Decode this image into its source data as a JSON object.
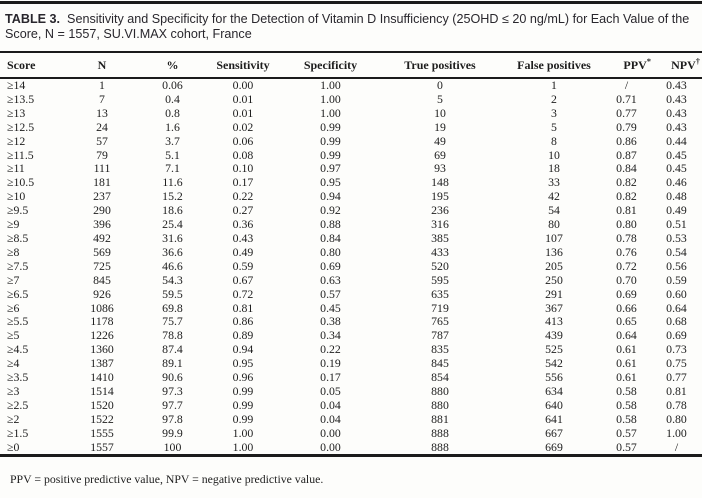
{
  "title": {
    "label": "TABLE 3.",
    "text": "Sensitivity and Specificity for the Detection of Vitamin D Insufficiency (25OHD ≤ 20 ng/mL) for Each Value of the Score, N = 1557, SU.VI.MAX cohort, France"
  },
  "table": {
    "columns": [
      {
        "label": "Score",
        "sup": ""
      },
      {
        "label": "N",
        "sup": ""
      },
      {
        "label": "%",
        "sup": ""
      },
      {
        "label": "Sensitivity",
        "sup": ""
      },
      {
        "label": "Specificity",
        "sup": ""
      },
      {
        "label": "True positives",
        "sup": ""
      },
      {
        "label": "False positives",
        "sup": ""
      },
      {
        "label": "PPV",
        "sup": "*"
      },
      {
        "label": "NPV",
        "sup": "†"
      }
    ],
    "rows": [
      [
        "≥14",
        "1",
        "0.06",
        "0.00",
        "1.00",
        "0",
        "1",
        "/",
        "0.43"
      ],
      [
        "≥13.5",
        "7",
        "0.4",
        "0.01",
        "1.00",
        "5",
        "2",
        "0.71",
        "0.43"
      ],
      [
        "≥13",
        "13",
        "0.8",
        "0.01",
        "1.00",
        "10",
        "3",
        "0.77",
        "0.43"
      ],
      [
        "≥12.5",
        "24",
        "1.6",
        "0.02",
        "0.99",
        "19",
        "5",
        "0.79",
        "0.43"
      ],
      [
        "≥12",
        "57",
        "3.7",
        "0.06",
        "0.99",
        "49",
        "8",
        "0.86",
        "0.44"
      ],
      [
        "≥11.5",
        "79",
        "5.1",
        "0.08",
        "0.99",
        "69",
        "10",
        "0.87",
        "0.45"
      ],
      [
        "≥11",
        "111",
        "7.1",
        "0.10",
        "0.97",
        "93",
        "18",
        "0.84",
        "0.45"
      ],
      [
        "≥10.5",
        "181",
        "11.6",
        "0.17",
        "0.95",
        "148",
        "33",
        "0.82",
        "0.46"
      ],
      [
        "≥10",
        "237",
        "15.2",
        "0.22",
        "0.94",
        "195",
        "42",
        "0.82",
        "0.48"
      ],
      [
        "≥9.5",
        "290",
        "18.6",
        "0.27",
        "0.92",
        "236",
        "54",
        "0.81",
        "0.49"
      ],
      [
        "≥9",
        "396",
        "25.4",
        "0.36",
        "0.88",
        "316",
        "80",
        "0.80",
        "0.51"
      ],
      [
        "≥8.5",
        "492",
        "31.6",
        "0.43",
        "0.84",
        "385",
        "107",
        "0.78",
        "0.53"
      ],
      [
        "≥8",
        "569",
        "36.6",
        "0.49",
        "0.80",
        "433",
        "136",
        "0.76",
        "0.54"
      ],
      [
        "≥7.5",
        "725",
        "46.6",
        "0.59",
        "0.69",
        "520",
        "205",
        "0.72",
        "0.56"
      ],
      [
        "≥7",
        "845",
        "54.3",
        "0.67",
        "0.63",
        "595",
        "250",
        "0.70",
        "0.59"
      ],
      [
        "≥6.5",
        "926",
        "59.5",
        "0.72",
        "0.57",
        "635",
        "291",
        "0.69",
        "0.60"
      ],
      [
        "≥6",
        "1086",
        "69.8",
        "0.81",
        "0.45",
        "719",
        "367",
        "0.66",
        "0.64"
      ],
      [
        "≥5.5",
        "1178",
        "75.7",
        "0.86",
        "0.38",
        "765",
        "413",
        "0.65",
        "0.68"
      ],
      [
        "≥5",
        "1226",
        "78.8",
        "0.89",
        "0.34",
        "787",
        "439",
        "0.64",
        "0.69"
      ],
      [
        "≥4.5",
        "1360",
        "87.4",
        "0.94",
        "0.22",
        "835",
        "525",
        "0.61",
        "0.73"
      ],
      [
        "≥4",
        "1387",
        "89.1",
        "0.95",
        "0.19",
        "845",
        "542",
        "0.61",
        "0.75"
      ],
      [
        "≥3.5",
        "1410",
        "90.6",
        "0.96",
        "0.17",
        "854",
        "556",
        "0.61",
        "0.77"
      ],
      [
        "≥3",
        "1514",
        "97.3",
        "0.99",
        "0.05",
        "880",
        "634",
        "0.58",
        "0.81"
      ],
      [
        "≥2.5",
        "1520",
        "97.7",
        "0.99",
        "0.04",
        "880",
        "640",
        "0.58",
        "0.78"
      ],
      [
        "≥2",
        "1522",
        "97.8",
        "0.99",
        "0.04",
        "881",
        "641",
        "0.58",
        "0.80"
      ],
      [
        "≥1.5",
        "1555",
        "99.9",
        "1.00",
        "0.00",
        "888",
        "667",
        "0.57",
        "1.00"
      ],
      [
        "≥0",
        "1557",
        "100",
        "1.00",
        "0.00",
        "888",
        "669",
        "0.57",
        "/"
      ]
    ]
  },
  "footnote": "PPV = positive predictive value, NPV = negative predictive value."
}
